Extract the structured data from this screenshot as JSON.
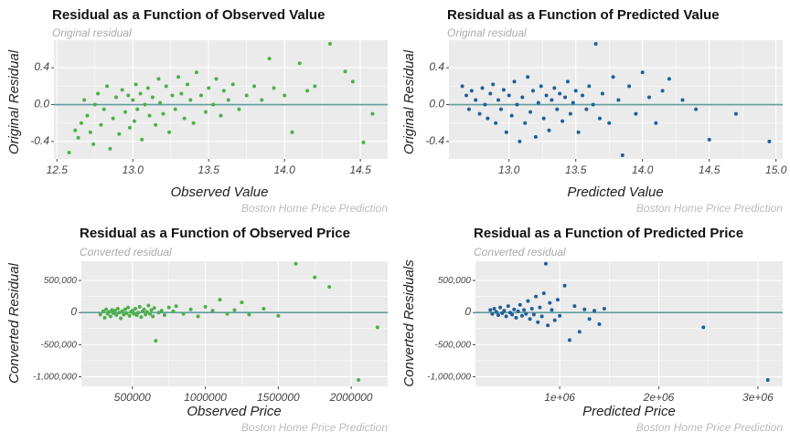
{
  "page": {
    "caption": "Boston Home Price Prediction"
  },
  "colors": {
    "panel_bg": "#ebebeb",
    "grid": "#ffffff",
    "hline": "#5f9ea0",
    "green": "#4daf4a",
    "blue": "#1f5f99"
  },
  "chart_data": [
    {
      "type": "scatter",
      "title": "Residual as a Function of Observed Value",
      "subtitle": "Original residual",
      "xlabel": "Observed Value",
      "ylabel": "Original Residual",
      "caption": "Boston Home Price Prediction",
      "color": "#4daf4a",
      "grid": true,
      "xlim": [
        12.48,
        14.68
      ],
      "ylim": [
        -0.59,
        0.7
      ],
      "x_ticks": [
        "12.5",
        "13.0",
        "13.5",
        "14.0",
        "14.5"
      ],
      "y_ticks": [
        "0.4",
        "0.0",
        "-0.4"
      ],
      "hline": 0,
      "points": [
        [
          12.58,
          -0.52
        ],
        [
          12.62,
          -0.28
        ],
        [
          12.64,
          -0.36
        ],
        [
          12.66,
          -0.2
        ],
        [
          12.68,
          0.05
        ],
        [
          12.7,
          -0.12
        ],
        [
          12.72,
          -0.3
        ],
        [
          12.74,
          -0.43
        ],
        [
          12.75,
          0.0
        ],
        [
          12.77,
          0.12
        ],
        [
          12.79,
          -0.22
        ],
        [
          12.81,
          -0.05
        ],
        [
          12.83,
          0.2
        ],
        [
          12.85,
          -0.48
        ],
        [
          12.87,
          -0.15
        ],
        [
          12.89,
          0.08
        ],
        [
          12.91,
          -0.32
        ],
        [
          12.93,
          0.16
        ],
        [
          12.95,
          -0.08
        ],
        [
          12.97,
          0.1
        ],
        [
          12.98,
          -0.25
        ],
        [
          13.0,
          0.05
        ],
        [
          13.01,
          -0.18
        ],
        [
          13.02,
          0.22
        ],
        [
          13.03,
          -0.05
        ],
        [
          13.05,
          0.12
        ],
        [
          13.06,
          -0.38
        ],
        [
          13.08,
          0.0
        ],
        [
          13.1,
          0.18
        ],
        [
          13.11,
          -0.12
        ],
        [
          13.13,
          0.08
        ],
        [
          13.15,
          -0.22
        ],
        [
          13.17,
          0.28
        ],
        [
          13.18,
          0.02
        ],
        [
          13.2,
          -0.1
        ],
        [
          13.22,
          0.2
        ],
        [
          13.24,
          -0.3
        ],
        [
          13.26,
          0.1
        ],
        [
          13.28,
          -0.05
        ],
        [
          13.3,
          0.3
        ],
        [
          13.32,
          0.12
        ],
        [
          13.34,
          -0.15
        ],
        [
          13.36,
          0.22
        ],
        [
          13.38,
          0.05
        ],
        [
          13.4,
          -0.2
        ],
        [
          13.42,
          0.35
        ],
        [
          13.45,
          0.1
        ],
        [
          13.48,
          -0.08
        ],
        [
          13.5,
          0.18
        ],
        [
          13.53,
          0.0
        ],
        [
          13.55,
          0.28
        ],
        [
          13.58,
          -0.12
        ],
        [
          13.6,
          0.15
        ],
        [
          13.63,
          0.05
        ],
        [
          13.66,
          0.22
        ],
        [
          13.7,
          -0.05
        ],
        [
          13.75,
          0.1
        ],
        [
          13.8,
          0.2
        ],
        [
          13.85,
          0.05
        ],
        [
          13.9,
          0.5
        ],
        [
          13.93,
          0.18
        ],
        [
          14.0,
          0.1
        ],
        [
          14.05,
          -0.3
        ],
        [
          14.1,
          0.45
        ],
        [
          14.15,
          0.15
        ],
        [
          14.2,
          0.2
        ],
        [
          14.3,
          0.66
        ],
        [
          14.4,
          0.36
        ],
        [
          14.45,
          0.25
        ],
        [
          14.52,
          -0.41
        ],
        [
          14.58,
          -0.1
        ]
      ]
    },
    {
      "type": "scatter",
      "title": "Residual as a Function of Predicted Value",
      "subtitle": "Original residual",
      "xlabel": "Predicted Value",
      "ylabel": "Original Residual",
      "caption": "Boston Home Price Prediction",
      "color": "#1f5f99",
      "grid": true,
      "xlim": [
        12.55,
        15.05
      ],
      "ylim": [
        -0.59,
        0.7
      ],
      "x_ticks": [
        "13.0",
        "13.5",
        "14.0",
        "14.5",
        "15.0"
      ],
      "y_ticks": [
        "0.4",
        "0.0",
        "-0.4"
      ],
      "hline": 0,
      "points": [
        [
          12.65,
          0.2
        ],
        [
          12.68,
          0.1
        ],
        [
          12.7,
          -0.05
        ],
        [
          12.72,
          0.15
        ],
        [
          12.75,
          0.05
        ],
        [
          12.78,
          -0.1
        ],
        [
          12.8,
          0.18
        ],
        [
          12.82,
          0.0
        ],
        [
          12.84,
          -0.15
        ],
        [
          12.86,
          0.12
        ],
        [
          12.88,
          0.22
        ],
        [
          12.9,
          -0.2
        ],
        [
          12.92,
          0.05
        ],
        [
          12.94,
          -0.05
        ],
        [
          12.96,
          0.16
        ],
        [
          12.98,
          -0.3
        ],
        [
          13.0,
          0.1
        ],
        [
          13.02,
          -0.12
        ],
        [
          13.04,
          0.25
        ],
        [
          13.06,
          0.0
        ],
        [
          13.08,
          -0.4
        ],
        [
          13.1,
          0.08
        ],
        [
          13.12,
          -0.2
        ],
        [
          13.14,
          0.3
        ],
        [
          13.16,
          -0.08
        ],
        [
          13.18,
          0.15
        ],
        [
          13.2,
          -0.35
        ],
        [
          13.22,
          0.02
        ],
        [
          13.24,
          0.2
        ],
        [
          13.26,
          -0.15
        ],
        [
          13.28,
          0.1
        ],
        [
          13.3,
          -0.28
        ],
        [
          13.32,
          0.05
        ],
        [
          13.34,
          0.18
        ],
        [
          13.36,
          -0.05
        ],
        [
          13.38,
          0.12
        ],
        [
          13.4,
          -0.18
        ],
        [
          13.42,
          0.08
        ],
        [
          13.44,
          0.25
        ],
        [
          13.46,
          -0.1
        ],
        [
          13.48,
          0.02
        ],
        [
          13.5,
          0.15
        ],
        [
          13.52,
          -0.3
        ],
        [
          13.55,
          0.1
        ],
        [
          13.58,
          -0.05
        ],
        [
          13.6,
          0.2
        ],
        [
          13.63,
          0.0
        ],
        [
          13.65,
          0.66
        ],
        [
          13.68,
          -0.15
        ],
        [
          13.7,
          0.12
        ],
        [
          13.75,
          -0.2
        ],
        [
          13.78,
          0.3
        ],
        [
          13.82,
          0.05
        ],
        [
          13.85,
          -0.55
        ],
        [
          13.9,
          0.2
        ],
        [
          13.95,
          -0.1
        ],
        [
          14.0,
          0.35
        ],
        [
          14.05,
          0.08
        ],
        [
          14.1,
          -0.2
        ],
        [
          14.15,
          0.15
        ],
        [
          14.2,
          0.28
        ],
        [
          14.3,
          0.05
        ],
        [
          14.4,
          -0.05
        ],
        [
          14.5,
          -0.38
        ],
        [
          14.7,
          -0.1
        ],
        [
          14.95,
          -0.4
        ]
      ]
    },
    {
      "type": "scatter",
      "title": "Residual as a Function of Observed Price",
      "subtitle": "Converted residual",
      "xlabel": "Observed Price",
      "ylabel": "Converted Residual",
      "caption": "Boston Home Price Prediction",
      "color": "#4daf4a",
      "grid": true,
      "xlim": [
        150000,
        2250000
      ],
      "ylim": [
        -1150000,
        800000
      ],
      "x_ticks": [
        "500000",
        "1000000",
        "1500000",
        "2000000"
      ],
      "y_ticks": [
        "500,000",
        "0",
        "-500,000",
        "-1,000,000"
      ],
      "hline": 0,
      "points": [
        [
          280000,
          -30000
        ],
        [
          300000,
          20000
        ],
        [
          310000,
          -80000
        ],
        [
          320000,
          50000
        ],
        [
          330000,
          -20000
        ],
        [
          340000,
          10000
        ],
        [
          350000,
          -60000
        ],
        [
          360000,
          40000
        ],
        [
          370000,
          -10000
        ],
        [
          380000,
          30000
        ],
        [
          390000,
          -40000
        ],
        [
          400000,
          60000
        ],
        [
          410000,
          0
        ],
        [
          420000,
          -90000
        ],
        [
          430000,
          20000
        ],
        [
          440000,
          -30000
        ],
        [
          450000,
          50000
        ],
        [
          460000,
          -10000
        ],
        [
          470000,
          80000
        ],
        [
          480000,
          -50000
        ],
        [
          490000,
          10000
        ],
        [
          500000,
          30000
        ],
        [
          510000,
          -20000
        ],
        [
          520000,
          60000
        ],
        [
          530000,
          -40000
        ],
        [
          540000,
          0
        ],
        [
          550000,
          90000
        ],
        [
          560000,
          -70000
        ],
        [
          570000,
          20000
        ],
        [
          580000,
          50000
        ],
        [
          590000,
          -30000
        ],
        [
          600000,
          10000
        ],
        [
          610000,
          110000
        ],
        [
          620000,
          -20000
        ],
        [
          630000,
          40000
        ],
        [
          640000,
          -60000
        ],
        [
          650000,
          70000
        ],
        [
          660000,
          -440000
        ],
        [
          680000,
          0
        ],
        [
          700000,
          30000
        ],
        [
          720000,
          -40000
        ],
        [
          750000,
          80000
        ],
        [
          780000,
          20000
        ],
        [
          800000,
          100000
        ],
        [
          850000,
          -20000
        ],
        [
          900000,
          50000
        ],
        [
          950000,
          -60000
        ],
        [
          1000000,
          90000
        ],
        [
          1050000,
          30000
        ],
        [
          1100000,
          200000
        ],
        [
          1150000,
          -20000
        ],
        [
          1200000,
          40000
        ],
        [
          1250000,
          160000
        ],
        [
          1300000,
          -30000
        ],
        [
          1400000,
          60000
        ],
        [
          1500000,
          -50000
        ],
        [
          1620000,
          760000
        ],
        [
          1750000,
          550000
        ],
        [
          1850000,
          400000
        ],
        [
          2050000,
          -1050000
        ],
        [
          2180000,
          -230000
        ]
      ]
    },
    {
      "type": "scatter",
      "title": "Residual as a Function of Predicted Price",
      "subtitle": "Converted residual",
      "xlabel": "Predicted Price",
      "ylabel": "Converted Residuals",
      "caption": "Boston Home Price Prediction",
      "color": "#1f5f99",
      "grid": true,
      "xlim": [
        150000,
        3250000
      ],
      "ylim": [
        -1150000,
        800000
      ],
      "x_ticks": [
        "1e+06",
        "2e+06",
        "3e+06"
      ],
      "y_ticks": [
        "500,000",
        "0",
        "-500,000",
        "-1,000,000"
      ],
      "hline": 0,
      "points": [
        [
          300000,
          40000
        ],
        [
          320000,
          -20000
        ],
        [
          340000,
          60000
        ],
        [
          360000,
          10000
        ],
        [
          380000,
          -40000
        ],
        [
          400000,
          80000
        ],
        [
          420000,
          -10000
        ],
        [
          440000,
          30000
        ],
        [
          460000,
          -60000
        ],
        [
          480000,
          100000
        ],
        [
          500000,
          0
        ],
        [
          520000,
          -30000
        ],
        [
          540000,
          50000
        ],
        [
          560000,
          -80000
        ],
        [
          580000,
          20000
        ],
        [
          600000,
          120000
        ],
        [
          620000,
          -50000
        ],
        [
          640000,
          40000
        ],
        [
          660000,
          -20000
        ],
        [
          680000,
          180000
        ],
        [
          700000,
          -100000
        ],
        [
          720000,
          60000
        ],
        [
          740000,
          -30000
        ],
        [
          760000,
          250000
        ],
        [
          780000,
          -150000
        ],
        [
          800000,
          80000
        ],
        [
          820000,
          -60000
        ],
        [
          840000,
          300000
        ],
        [
          860000,
          760000
        ],
        [
          880000,
          -200000
        ],
        [
          900000,
          150000
        ],
        [
          920000,
          40000
        ],
        [
          950000,
          -120000
        ],
        [
          980000,
          200000
        ],
        [
          1000000,
          -50000
        ],
        [
          1050000,
          420000
        ],
        [
          1100000,
          -430000
        ],
        [
          1150000,
          100000
        ],
        [
          1200000,
          -300000
        ],
        [
          1250000,
          50000
        ],
        [
          1300000,
          -100000
        ],
        [
          1350000,
          30000
        ],
        [
          1400000,
          -180000
        ],
        [
          1450000,
          60000
        ],
        [
          2450000,
          -230000
        ],
        [
          3100000,
          -1050000
        ]
      ]
    }
  ]
}
